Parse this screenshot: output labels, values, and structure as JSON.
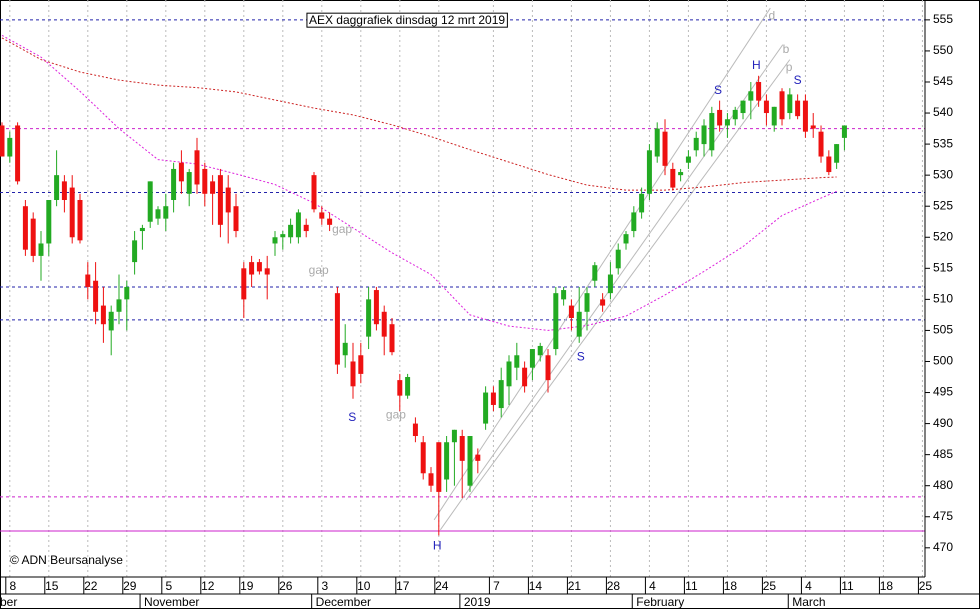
{
  "chart_data": {
    "type": "candlestick",
    "title": "AEX daggrafiek dinsdag 12 mrt 2019",
    "credit": "© ADN Beursanalyse",
    "up_color": "#22aa22",
    "down_color": "#ee1111",
    "xlim": [
      -0.256,
      118.33
    ],
    "ylim": [
      465.3,
      558.2
    ],
    "yticks": [
      470,
      475,
      480,
      485,
      490,
      495,
      500,
      505,
      510,
      515,
      520,
      525,
      530,
      535,
      540,
      545,
      550,
      555
    ],
    "xticks": [
      {
        "value": 1,
        "label": "8"
      },
      {
        "value": 6,
        "label": "15"
      },
      {
        "value": 11,
        "label": "22"
      },
      {
        "value": 16,
        "label": "29"
      },
      {
        "value": 21,
        "label": "5"
      },
      {
        "value": 26,
        "label": "12"
      },
      {
        "value": 31,
        "label": "19"
      },
      {
        "value": 36,
        "label": "26"
      },
      {
        "value": 41,
        "label": "3"
      },
      {
        "value": 46,
        "label": "10"
      },
      {
        "value": 51,
        "label": "17"
      },
      {
        "value": 56,
        "label": "24"
      },
      {
        "value": 63,
        "label": "7"
      },
      {
        "value": 68,
        "label": "14"
      },
      {
        "value": 73,
        "label": "21"
      },
      {
        "value": 78,
        "label": "28"
      },
      {
        "value": 83,
        "label": "4"
      },
      {
        "value": 88,
        "label": "11"
      },
      {
        "value": 93,
        "label": "18"
      },
      {
        "value": 98,
        "label": "25"
      },
      {
        "value": 103,
        "label": "4"
      },
      {
        "value": 108,
        "label": "11"
      },
      {
        "value": 113,
        "label": "18"
      },
      {
        "value": 118,
        "label": "25"
      }
    ],
    "months": [
      {
        "value": -0.256,
        "label": "ber"
      },
      {
        "value": 17.7,
        "label": "November"
      },
      {
        "value": 39.7,
        "label": "December"
      },
      {
        "value": 58.7,
        "label": "2019"
      },
      {
        "value": 80.8,
        "label": "February"
      },
      {
        "value": 100.8,
        "label": "March"
      }
    ],
    "grid": true,
    "open": [
      538,
      533,
      538,
      525,
      523,
      517,
      519,
      526,
      529,
      528,
      526,
      514,
      513,
      509,
      505,
      508,
      510,
      516,
      521,
      522.5,
      523,
      523,
      526,
      532,
      527,
      534,
      531,
      529,
      530,
      528,
      525,
      515,
      516,
      516,
      515,
      519,
      520,
      520,
      520,
      522,
      530,
      524,
      523,
      511,
      501,
      500,
      501,
      504,
      511.5,
      508,
      506,
      497,
      494.5,
      490,
      487,
      482,
      487,
      481,
      487,
      488,
      480,
      485,
      490,
      495,
      492.5,
      496,
      499,
      499,
      499,
      501,
      501,
      502,
      510,
      509,
      504,
      508,
      513,
      510,
      511,
      515,
      519,
      521,
      524,
      527,
      533,
      537,
      531,
      530,
      532,
      534,
      535,
      534,
      540.5,
      538,
      539,
      540,
      542,
      545,
      542,
      538,
      543.5,
      540,
      542,
      542,
      538,
      537,
      533,
      532,
      536
    ],
    "high": [
      538.5,
      537,
      538.5,
      526,
      524,
      521,
      526,
      534,
      530,
      530,
      527,
      516,
      516,
      512,
      509,
      514,
      513,
      521,
      522,
      529,
      525,
      527,
      532,
      534,
      531,
      536,
      532,
      530,
      531,
      530,
      527,
      516,
      517,
      516.5,
      517,
      521,
      521,
      523,
      524.5,
      523,
      530.5,
      525,
      524,
      512,
      506,
      503,
      503,
      512,
      512,
      509,
      507,
      498,
      498,
      491,
      488,
      483,
      487,
      488,
      489,
      489,
      488,
      486,
      496,
      496,
      499,
      501,
      503,
      500,
      502,
      503,
      502,
      512,
      512,
      510,
      512,
      512,
      516,
      511,
      516,
      519,
      521,
      525,
      528,
      535,
      538.5,
      539,
      532,
      531,
      534,
      537,
      539,
      541,
      542,
      540,
      541,
      542,
      545,
      546,
      543,
      541,
      544,
      544,
      543,
      543,
      540,
      538,
      534,
      535,
      538
    ],
    "low": [
      533,
      532,
      528.5,
      517,
      516,
      513,
      517,
      525,
      524,
      519,
      519,
      510,
      506,
      503,
      501,
      506,
      505,
      514,
      518,
      521.5,
      522,
      521,
      524,
      527,
      525,
      527,
      525,
      522,
      520,
      519,
      520,
      507,
      512,
      514,
      510,
      517,
      518,
      519,
      519,
      520,
      524,
      522,
      521,
      498,
      499,
      494,
      496.5,
      502,
      505,
      501,
      501,
      492,
      494,
      487,
      481,
      479,
      472,
      479,
      480,
      478,
      479,
      482,
      489,
      492,
      491,
      493,
      497,
      495,
      497,
      500,
      495,
      501,
      509,
      505,
      503,
      505,
      512,
      508,
      510,
      514,
      518,
      520,
      523,
      526,
      532,
      530,
      527.5,
      529,
      531,
      533,
      533,
      533,
      537,
      536,
      538,
      539,
      539,
      541,
      538,
      537,
      538,
      539,
      539,
      536,
      536,
      532,
      530,
      531,
      534
    ],
    "close": [
      533,
      536,
      529,
      518,
      517,
      519,
      526,
      530,
      526,
      520,
      519.5,
      512,
      508,
      506,
      508,
      510,
      512,
      519.5,
      521.5,
      529,
      524.5,
      525,
      531,
      529,
      530.5,
      528.5,
      527,
      527,
      522,
      524,
      521,
      510,
      514,
      514.5,
      514,
      520,
      520.5,
      522,
      524,
      521,
      524.5,
      523,
      522,
      499.5,
      503,
      496,
      498,
      510,
      506,
      504,
      501.5,
      494.5,
      497.5,
      488,
      482,
      480,
      479,
      487,
      489,
      484,
      488,
      484,
      495,
      493,
      497,
      500,
      501,
      496,
      502,
      502.5,
      497,
      511,
      511.5,
      507,
      508,
      511,
      515.5,
      509,
      514,
      518,
      520.5,
      524,
      527,
      534,
      537.5,
      531.5,
      528,
      530.5,
      533,
      536,
      538,
      540,
      538,
      539,
      540.5,
      542,
      543.5,
      542,
      540,
      541,
      539,
      543,
      539.5,
      537,
      537.5,
      533,
      530.5,
      535,
      538
    ],
    "series": [
      {
        "color": "#cc2222",
        "x": [
          0,
          5,
          10,
          15,
          20,
          25,
          30,
          35,
          40,
          45,
          50,
          55,
          60,
          65,
          70,
          75,
          80,
          85,
          90,
          95,
          100,
          105,
          107
        ],
        "values": [
          552.1,
          548.6,
          546.6,
          545.3,
          544.5,
          544.1,
          543.4,
          542.1,
          540.8,
          539.7,
          538.1,
          536.2,
          534.1,
          532.1,
          530.1,
          528.4,
          527.6,
          527.6,
          528.1,
          528.8,
          529.2,
          529.6,
          529.7
        ]
      },
      {
        "color": "#dd22dd",
        "x": [
          0,
          5,
          10,
          15,
          20,
          25,
          30,
          35,
          40,
          45,
          50,
          55,
          60,
          65,
          70,
          75,
          80,
          85,
          90,
          95,
          100,
          105,
          107
        ],
        "values": [
          552.5,
          549,
          543.5,
          537.5,
          532.5,
          531.8,
          530.2,
          528.5,
          525.5,
          521.5,
          517.5,
          514,
          507.5,
          505.7,
          505,
          505.8,
          507.3,
          510.7,
          514.5,
          518.5,
          523.5,
          526.3,
          527.4
        ]
      }
    ],
    "levels": [
      {
        "value": 555,
        "color": "#2222aa",
        "dashed": true
      },
      {
        "value": 527.2,
        "color": "#2222aa",
        "dashed": true
      },
      {
        "value": 512,
        "color": "#2222aa",
        "dashed": true
      },
      {
        "value": 506.7,
        "color": "#2222aa",
        "dashed": true
      },
      {
        "value": 537.5,
        "color": "#cc22cc",
        "dashed": true
      },
      {
        "value": 478.2,
        "color": "#cc22cc",
        "dashed": true
      },
      {
        "value": 472.7,
        "color": "#cc22cc",
        "dashed": false
      }
    ],
    "trendlines": [
      {
        "x": [
          55.4,
          98.5
        ],
        "y": [
          474.5,
          556.9
        ]
      },
      {
        "x": [
          56.2,
          100.1
        ],
        "y": [
          472.9,
          551
        ]
      },
      {
        "x": [
          59.5,
          101
        ],
        "y": [
          477.7,
          548.6
        ]
      }
    ],
    "annotations": [
      {
        "text": "S",
        "x": 44.9,
        "y": 490.9,
        "color": "#2222bb"
      },
      {
        "text": "H",
        "x": 55.8,
        "y": 470.2,
        "color": "#2222bb"
      },
      {
        "text": "S",
        "x": 74.2,
        "y": 500.7,
        "color": "#2222bb"
      },
      {
        "text": "S",
        "x": 91.8,
        "y": 543.6,
        "color": "#2222bb"
      },
      {
        "text": "H",
        "x": 96.7,
        "y": 547.6,
        "color": "#2222bb"
      },
      {
        "text": "S",
        "x": 102,
        "y": 545.2,
        "color": "#2222bb"
      },
      {
        "text": "gap",
        "x": 43.6,
        "y": 521.2,
        "color": "#aaaaaa"
      },
      {
        "text": "gap",
        "x": 40.6,
        "y": 514.6,
        "color": "#aaaaaa"
      },
      {
        "text": "gap",
        "x": 50.5,
        "y": 491.3,
        "color": "#aaaaaa"
      },
      {
        "text": "d",
        "x": 98.7,
        "y": 555.6,
        "color": "#aaaaaa"
      },
      {
        "text": "b",
        "x": 100.5,
        "y": 550.2,
        "color": "#aaaaaa"
      },
      {
        "text": "p",
        "x": 100.9,
        "y": 547.3,
        "color": "#aaaaaa"
      }
    ]
  }
}
